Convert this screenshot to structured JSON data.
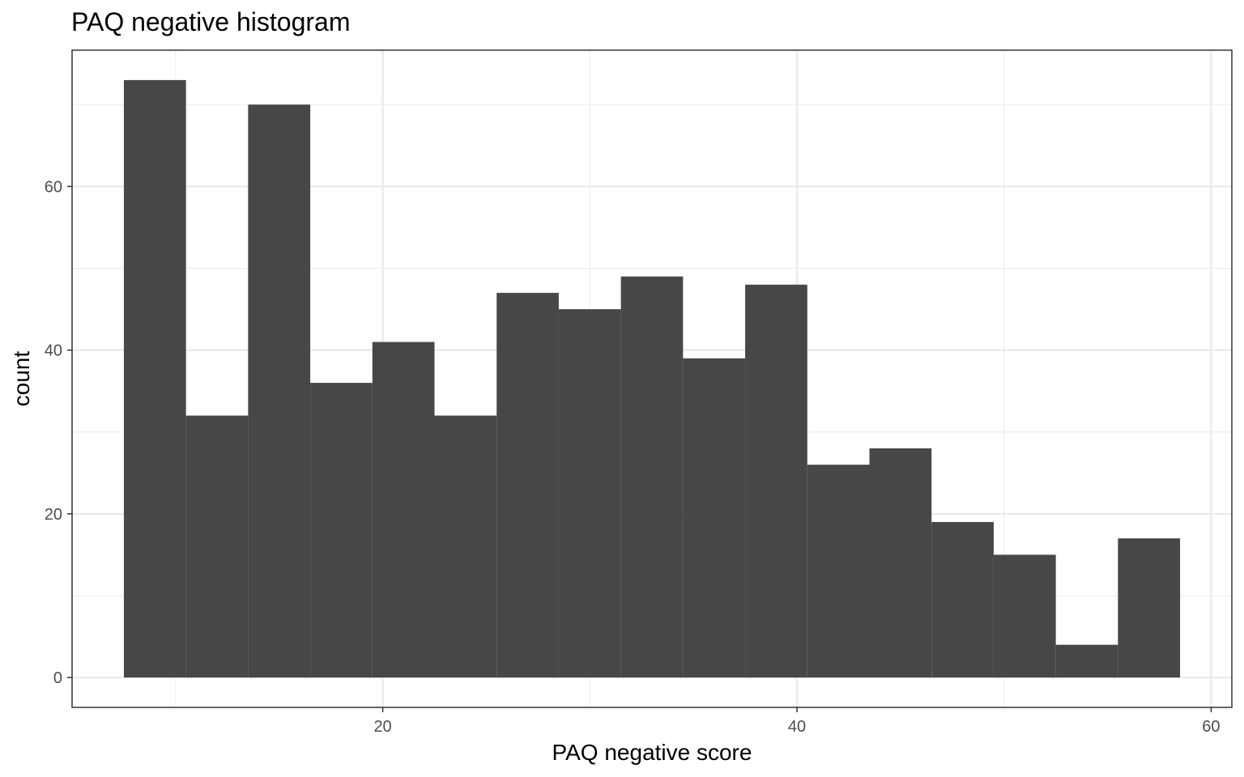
{
  "chart_data": {
    "type": "bar",
    "title": "PAQ negative histogram",
    "xlabel": "PAQ negative score",
    "ylabel": "count",
    "bins": [
      {
        "x0": 7.5,
        "x1": 10.5,
        "count": 73
      },
      {
        "x0": 10.5,
        "x1": 13.5,
        "count": 32
      },
      {
        "x0": 13.5,
        "x1": 16.5,
        "count": 70
      },
      {
        "x0": 16.5,
        "x1": 19.5,
        "count": 36
      },
      {
        "x0": 19.5,
        "x1": 22.5,
        "count": 41
      },
      {
        "x0": 22.5,
        "x1": 25.5,
        "count": 32
      },
      {
        "x0": 25.5,
        "x1": 28.5,
        "count": 47
      },
      {
        "x0": 28.5,
        "x1": 31.5,
        "count": 45
      },
      {
        "x0": 31.5,
        "x1": 34.5,
        "count": 49
      },
      {
        "x0": 34.5,
        "x1": 37.5,
        "count": 39
      },
      {
        "x0": 37.5,
        "x1": 40.5,
        "count": 48
      },
      {
        "x0": 40.5,
        "x1": 43.5,
        "count": 26
      },
      {
        "x0": 43.5,
        "x1": 46.5,
        "count": 28
      },
      {
        "x0": 46.5,
        "x1": 49.5,
        "count": 19
      },
      {
        "x0": 49.5,
        "x1": 52.5,
        "count": 15
      },
      {
        "x0": 52.5,
        "x1": 55.5,
        "count": 4
      },
      {
        "x0": 55.5,
        "x1": 58.5,
        "count": 17
      }
    ],
    "xlim": [
      5.0,
      61.0
    ],
    "ylim": [
      -3.65,
      76.65
    ],
    "x_ticks": [
      20,
      40,
      60
    ],
    "x_minor_ticks": [
      10,
      30,
      50
    ],
    "y_ticks": [
      0,
      20,
      40,
      60
    ],
    "y_minor_ticks": [
      10,
      30,
      50,
      70
    ],
    "grid": true,
    "bar_color": "#474747",
    "grid_color": "#ebebeb",
    "panel_border_color": "#333333"
  }
}
